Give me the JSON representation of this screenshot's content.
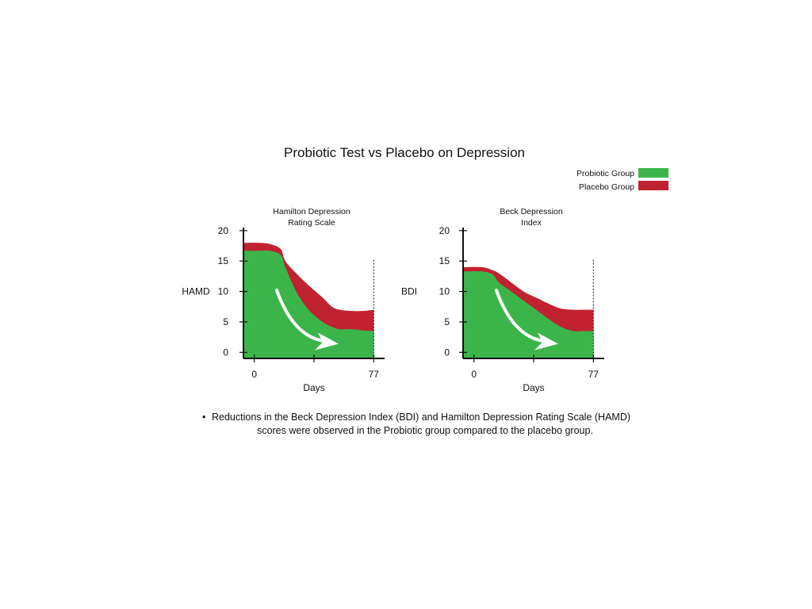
{
  "title": "Probiotic Test vs Placebo on Depression",
  "colors": {
    "probiotic": "#3bb54a",
    "placebo": "#c12231",
    "axis": "#111111",
    "arrow": "#ffffff"
  },
  "legend": [
    {
      "label": "Probiotic Group",
      "color": "#3bb54a"
    },
    {
      "label": "Placebo Group",
      "color": "#c12231"
    }
  ],
  "chart_data": [
    {
      "type": "area",
      "title_lines": [
        "Hamilton Depression",
        "Rating Scale"
      ],
      "xlabel": "Days",
      "ylabel": "HAMD",
      "x_ticks": [
        0,
        77
      ],
      "y_ticks": [
        0,
        5,
        10,
        15,
        20
      ],
      "xlim": [
        -7,
        84
      ],
      "ylim": [
        -1,
        20.5
      ],
      "series": [
        {
          "name": "Placebo Group",
          "x": [
            -7,
            3,
            10,
            17,
            20,
            27,
            35,
            44,
            50,
            55,
            63,
            70,
            77
          ],
          "values": [
            18.0,
            18.0,
            17.8,
            17.0,
            15.0,
            13.0,
            11.0,
            9.0,
            7.5,
            7.0,
            6.8,
            6.8,
            7.0
          ]
        },
        {
          "name": "Probiotic Group",
          "x": [
            -7,
            3,
            10,
            17,
            20,
            27,
            35,
            44,
            50,
            55,
            63,
            70,
            77
          ],
          "values": [
            16.7,
            16.7,
            16.7,
            16.0,
            14.0,
            10.0,
            7.0,
            5.0,
            4.2,
            3.8,
            3.8,
            3.6,
            3.5
          ]
        }
      ]
    },
    {
      "type": "area",
      "title_lines": [
        "Beck Depression",
        "Index"
      ],
      "xlabel": "Days",
      "ylabel": "BDI",
      "x_ticks": [
        0,
        77
      ],
      "y_ticks": [
        0,
        5,
        10,
        15,
        20
      ],
      "xlim": [
        -7,
        84
      ],
      "ylim": [
        -1,
        20.5
      ],
      "series": [
        {
          "name": "Placebo Group",
          "x": [
            -7,
            5,
            12,
            16,
            24,
            32,
            40,
            48,
            56,
            64,
            70,
            77
          ],
          "values": [
            14.0,
            14.0,
            13.5,
            13.0,
            11.5,
            10.0,
            9.0,
            8.0,
            7.2,
            7.0,
            7.0,
            7.0
          ]
        },
        {
          "name": "Probiotic Group",
          "x": [
            -7,
            5,
            12,
            16,
            24,
            32,
            40,
            48,
            56,
            64,
            70,
            77
          ],
          "values": [
            13.3,
            13.3,
            12.8,
            11.5,
            10.0,
            8.5,
            7.0,
            5.5,
            4.2,
            3.5,
            3.5,
            3.5
          ]
        }
      ]
    }
  ],
  "note": "Reductions in the Beck Depression Index (BDI) and Hamilton Depression Rating Scale (HAMD)",
  "note_continued": "scores were observed in the Probiotic group compared to the placebo group.",
  "bullet": "•"
}
